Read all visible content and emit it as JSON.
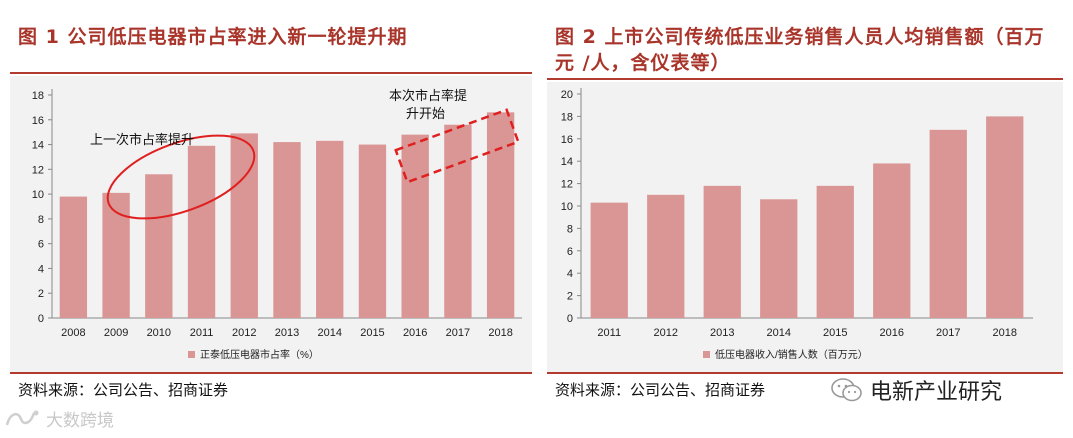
{
  "chart_data": [
    {
      "type": "bar",
      "title": "图 1 公司低压电器市占率进入新一轮提升期",
      "categories": [
        "2008",
        "2009",
        "2010",
        "2011",
        "2012",
        "2013",
        "2014",
        "2015",
        "2016",
        "2017",
        "2018"
      ],
      "series": [
        {
          "name": "正泰低压电器市占率（%）",
          "values": [
            9.8,
            10.1,
            11.6,
            13.9,
            14.9,
            14.2,
            14.3,
            14.0,
            14.8,
            15.6,
            16.6
          ]
        }
      ],
      "ylim": [
        0,
        18
      ],
      "yticks": [
        0,
        2,
        4,
        6,
        8,
        10,
        12,
        14,
        16,
        18
      ],
      "legend": "bottom",
      "annotations": [
        "上一次市占率提升",
        "本次市占率提",
        "升开始"
      ],
      "source": "资料来源：公司公告、招商证券"
    },
    {
      "type": "bar",
      "title_line1": "图 2 上市公司传统低压业务销售人员人均销售额（百万",
      "title_line2": "元 /人，含仪表等）",
      "categories": [
        "2011",
        "2012",
        "2013",
        "2014",
        "2015",
        "2016",
        "2017",
        "2018"
      ],
      "series": [
        {
          "name": "低压电器收入/销售人数（百万元）",
          "values": [
            10.3,
            11.0,
            11.8,
            10.6,
            11.8,
            13.8,
            16.8,
            18.0
          ]
        }
      ],
      "ylim": [
        0,
        20
      ],
      "yticks": [
        0,
        2,
        4,
        6,
        8,
        10,
        12,
        14,
        16,
        18,
        20
      ],
      "legend": "bottom",
      "source": "资料来源：公司公告、招商证券"
    }
  ],
  "colors": {
    "bar": "#d99694",
    "title": "#a8342a",
    "rule": "#b33a2e",
    "annotation": "#e02020",
    "background": "#f2f2f2"
  },
  "watermarks": {
    "right": "电新产业研究",
    "left": "大数跨境"
  }
}
